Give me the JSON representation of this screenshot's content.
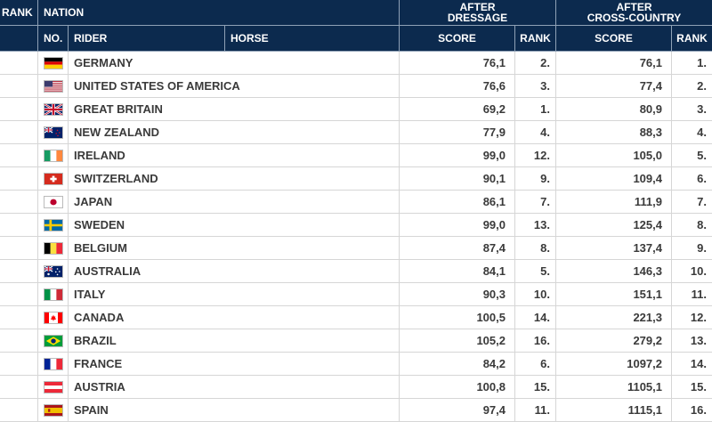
{
  "header": {
    "rank": "RANK",
    "nation": "NATION",
    "after_dressage": [
      "AFTER",
      "DRESSAGE"
    ],
    "after_cross_country": [
      "AFTER",
      "CROSS-COUNTRY"
    ],
    "no": "NO.",
    "rider": "RIDER",
    "horse": "HORSE",
    "score1": "SCORE",
    "rank1": "RANK",
    "score2": "SCORE",
    "rank2": "RANK"
  },
  "rows": [
    {
      "nation": "GERMANY",
      "flag": "de",
      "dressage_score": "76,1",
      "dressage_rank": "2.",
      "xc_score": "76,1",
      "xc_rank": "1."
    },
    {
      "nation": "UNITED STATES OF AMERICA",
      "flag": "us",
      "dressage_score": "76,6",
      "dressage_rank": "3.",
      "xc_score": "77,4",
      "xc_rank": "2."
    },
    {
      "nation": "GREAT BRITAIN",
      "flag": "gb",
      "dressage_score": "69,2",
      "dressage_rank": "1.",
      "xc_score": "80,9",
      "xc_rank": "3."
    },
    {
      "nation": "NEW ZEALAND",
      "flag": "nz",
      "dressage_score": "77,9",
      "dressage_rank": "4.",
      "xc_score": "88,3",
      "xc_rank": "4."
    },
    {
      "nation": "IRELAND",
      "flag": "ie",
      "dressage_score": "99,0",
      "dressage_rank": "12.",
      "xc_score": "105,0",
      "xc_rank": "5."
    },
    {
      "nation": "SWITZERLAND",
      "flag": "ch",
      "dressage_score": "90,1",
      "dressage_rank": "9.",
      "xc_score": "109,4",
      "xc_rank": "6."
    },
    {
      "nation": "JAPAN",
      "flag": "jp",
      "dressage_score": "86,1",
      "dressage_rank": "7.",
      "xc_score": "111,9",
      "xc_rank": "7."
    },
    {
      "nation": "SWEDEN",
      "flag": "se",
      "dressage_score": "99,0",
      "dressage_rank": "13.",
      "xc_score": "125,4",
      "xc_rank": "8."
    },
    {
      "nation": "BELGIUM",
      "flag": "be",
      "dressage_score": "87,4",
      "dressage_rank": "8.",
      "xc_score": "137,4",
      "xc_rank": "9."
    },
    {
      "nation": "AUSTRALIA",
      "flag": "au",
      "dressage_score": "84,1",
      "dressage_rank": "5.",
      "xc_score": "146,3",
      "xc_rank": "10."
    },
    {
      "nation": "ITALY",
      "flag": "it",
      "dressage_score": "90,3",
      "dressage_rank": "10.",
      "xc_score": "151,1",
      "xc_rank": "11."
    },
    {
      "nation": "CANADA",
      "flag": "ca",
      "dressage_score": "100,5",
      "dressage_rank": "14.",
      "xc_score": "221,3",
      "xc_rank": "12."
    },
    {
      "nation": "BRAZIL",
      "flag": "br",
      "dressage_score": "105,2",
      "dressage_rank": "16.",
      "xc_score": "279,2",
      "xc_rank": "13."
    },
    {
      "nation": "FRANCE",
      "flag": "fr",
      "dressage_score": "84,2",
      "dressage_rank": "6.",
      "xc_score": "1097,2",
      "xc_rank": "14."
    },
    {
      "nation": "AUSTRIA",
      "flag": "at",
      "dressage_score": "100,8",
      "dressage_rank": "15.",
      "xc_score": "1105,1",
      "xc_rank": "15."
    },
    {
      "nation": "SPAIN",
      "flag": "es",
      "dressage_score": "97,4",
      "dressage_rank": "11.",
      "xc_score": "1115,1",
      "xc_rank": "16."
    }
  ]
}
